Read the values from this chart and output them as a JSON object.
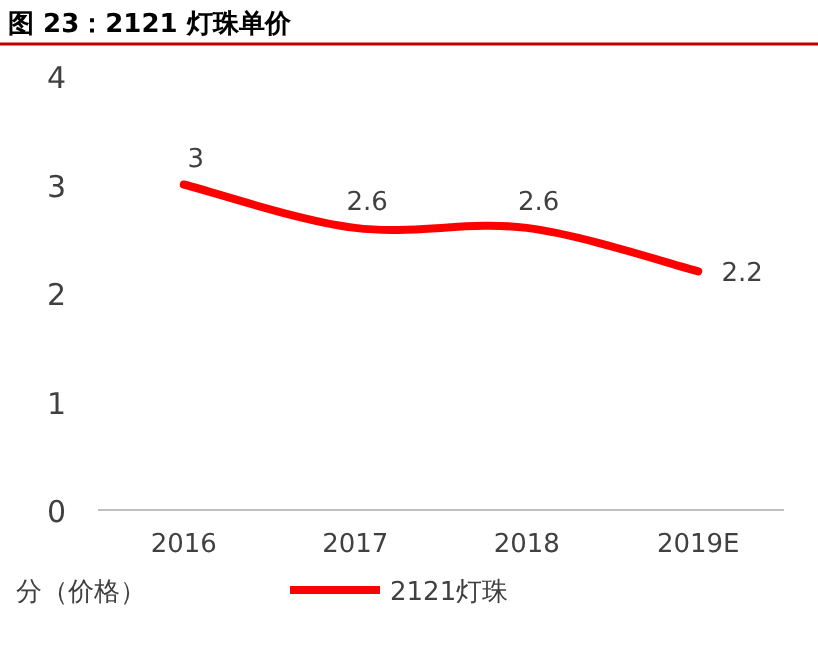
{
  "chart_data": {
    "type": "line",
    "title": "图 23：2121 灯珠单价",
    "ylabel": "分（价格）",
    "categories": [
      "2016",
      "2017",
      "2018",
      "2019E"
    ],
    "series": [
      {
        "name": "2121灯珠",
        "color": "#ff0000",
        "values": [
          3,
          2.6,
          2.6,
          2.2
        ]
      }
    ],
    "ylim": [
      0,
      4
    ],
    "yticks": [
      0,
      1,
      2,
      3,
      4
    ],
    "data_labels": true,
    "legend": "bottom",
    "grid": false,
    "marker": "none",
    "line_style": "solid"
  }
}
